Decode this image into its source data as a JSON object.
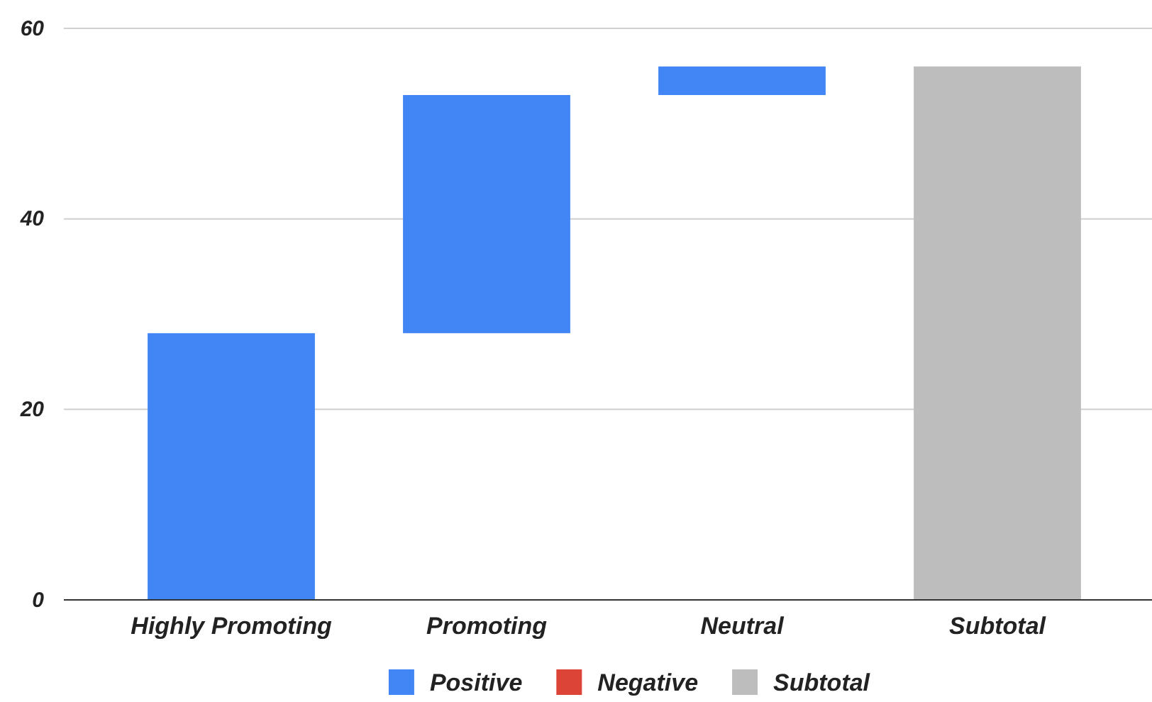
{
  "chart_data": {
    "type": "bar",
    "categories": [
      "Highly Promoting",
      "Promoting",
      "Neutral",
      "Subtotal"
    ],
    "series": [
      {
        "name": "Positive",
        "color": "#4285f4",
        "values": [
          28,
          25,
          3,
          null
        ],
        "base": [
          0,
          28,
          53,
          null
        ]
      },
      {
        "name": "Negative",
        "color": "#db4437",
        "values": [
          null,
          null,
          null,
          null
        ]
      },
      {
        "name": "Subtotal",
        "color": "#bdbdbd",
        "values": [
          null,
          null,
          null,
          56
        ],
        "base": [
          null,
          null,
          null,
          0
        ]
      }
    ],
    "ylim": [
      0,
      60
    ],
    "yticks": [
      0,
      20,
      40,
      60
    ],
    "grid": "y",
    "legend": "bottom"
  }
}
